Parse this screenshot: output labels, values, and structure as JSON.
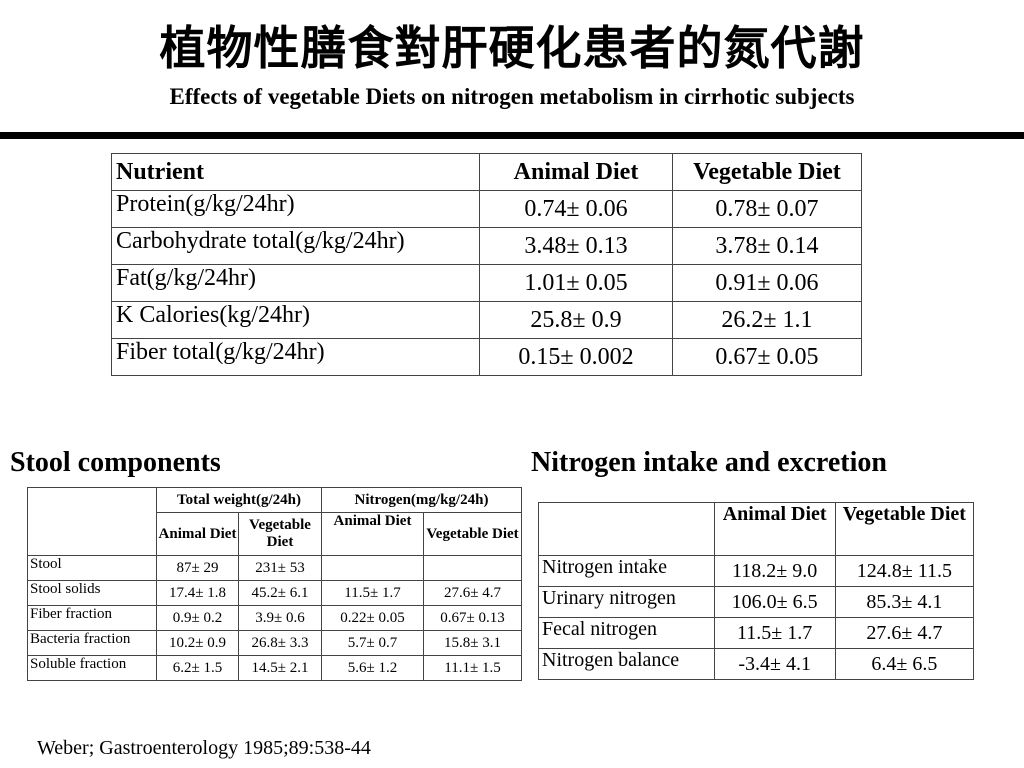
{
  "title_cn": "植物性膳食對肝硬化患者的氮代謝",
  "title_en": "Effects of vegetable Diets on nitrogen metabolism in cirrhotic subjects",
  "nutrient_table": {
    "headers": [
      "Nutrient",
      "Animal Diet",
      "Vegetable Diet"
    ],
    "rows": [
      [
        "Protein(g/kg/24hr)",
        "0.74±  0.06",
        "0.78±  0.07"
      ],
      [
        "Carbohydrate total(g/kg/24hr)",
        "3.48±  0.13",
        "3.78±  0.14"
      ],
      [
        "Fat(g/kg/24hr)",
        "1.01±  0.05",
        "0.91±  0.06"
      ],
      [
        "K Calories(kg/24hr)",
        "25.8±  0.9",
        "26.2±  1.1"
      ],
      [
        "Fiber total(g/kg/24hr)",
        "0.15±  0.002",
        "0.67±  0.05"
      ]
    ]
  },
  "stool_section": {
    "heading": "Stool components",
    "group_headers": [
      "Total weight(g/24h)",
      "Nitrogen(mg/kg/24h)"
    ],
    "sub_headers": [
      "Animal Diet",
      "Vegetable Diet",
      "Animal Diet",
      "Vegetable Diet"
    ],
    "rows": [
      [
        "Stool",
        "87±  29",
        "231±  53",
        "",
        ""
      ],
      [
        "Stool solids",
        "17.4±  1.8",
        "45.2±  6.1",
        "11.5±  1.7",
        "27.6±  4.7"
      ],
      [
        "Fiber fraction",
        "0.9±  0.2",
        "3.9±  0.6",
        "0.22±  0.05",
        "0.67±  0.13"
      ],
      [
        "Bacteria fraction",
        "10.2±  0.9",
        "26.8±  3.3",
        "5.7±  0.7",
        "15.8±  3.1"
      ],
      [
        "Soluble fraction",
        "6.2±  1.5",
        "14.5±  2.1",
        "5.6±  1.2",
        "11.1±  1.5"
      ]
    ]
  },
  "nitrogen_section": {
    "heading": "Nitrogen intake and excretion",
    "headers": [
      "",
      "Animal Diet",
      "Vegetable Diet"
    ],
    "rows": [
      [
        "Nitrogen intake",
        "118.2±  9.0",
        "124.8±  11.5"
      ],
      [
        "Urinary nitrogen",
        "106.0±  6.5",
        "85.3±  4.1"
      ],
      [
        "Fecal nitrogen",
        "11.5±  1.7",
        "27.6±  4.7"
      ],
      [
        "Nitrogen balance",
        "-3.4±  4.1",
        "6.4±  6.5"
      ]
    ]
  },
  "citation": "Weber; Gastroenterology 1985;89:538-44"
}
